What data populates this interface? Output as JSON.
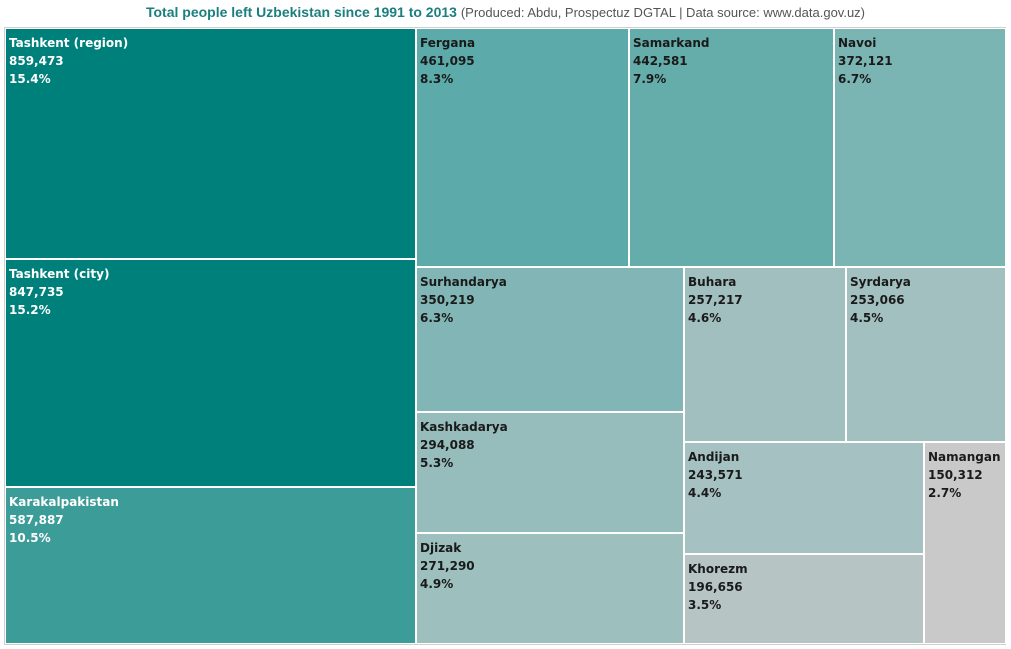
{
  "header": {
    "title": "Total people left Uzbekistan since 1991 to 2013",
    "subtitle": "(Produced: Abdu, Prospectuz DGTAL | Data source: www.data.gov.uz)"
  },
  "chart_data": {
    "type": "treemap",
    "items": [
      {
        "name": "Tashkent (region)",
        "value": "859,473",
        "percent": "15.4%",
        "color": "#00807b",
        "text": "light"
      },
      {
        "name": "Tashkent (city)",
        "value": "847,735",
        "percent": "15.2%",
        "color": "#00807b",
        "text": "light"
      },
      {
        "name": "Karakalpakistan",
        "value": "587,887",
        "percent": "10.5%",
        "color": "#3c9c98",
        "text": "light"
      },
      {
        "name": "Fergana",
        "value": "461,095",
        "percent": "8.3%",
        "color": "#5caaa9",
        "text": "dark"
      },
      {
        "name": "Samarkand",
        "value": "442,581",
        "percent": "7.9%",
        "color": "#64adaa",
        "text": "dark"
      },
      {
        "name": "Navoi",
        "value": "372,121",
        "percent": "6.7%",
        "color": "#7ab4b3",
        "text": "dark"
      },
      {
        "name": "Surhandarya",
        "value": "350,219",
        "percent": "6.3%",
        "color": "#82b5b5",
        "text": "dark"
      },
      {
        "name": "Kashkadarya",
        "value": "294,088",
        "percent": "5.3%",
        "color": "#96bcbc",
        "text": "dark"
      },
      {
        "name": "Djizak",
        "value": "271,290",
        "percent": "4.9%",
        "color": "#9dbfbe",
        "text": "dark"
      },
      {
        "name": "Buhara",
        "value": "257,217",
        "percent": "4.6%",
        "color": "#a2bfbf",
        "text": "dark"
      },
      {
        "name": "Syrdarya",
        "value": "253,066",
        "percent": "4.5%",
        "color": "#a3c0c0",
        "text": "dark"
      },
      {
        "name": "Andijan",
        "value": "243,571",
        "percent": "4.4%",
        "color": "#a6c1c1",
        "text": "dark"
      },
      {
        "name": "Khorezm",
        "value": "196,656",
        "percent": "3.5%",
        "color": "#b6c4c4",
        "text": "dark"
      },
      {
        "name": "Namangan",
        "value": "150,312",
        "percent": "2.7%",
        "color": "#c9c9c9",
        "text": "dark"
      }
    ]
  }
}
